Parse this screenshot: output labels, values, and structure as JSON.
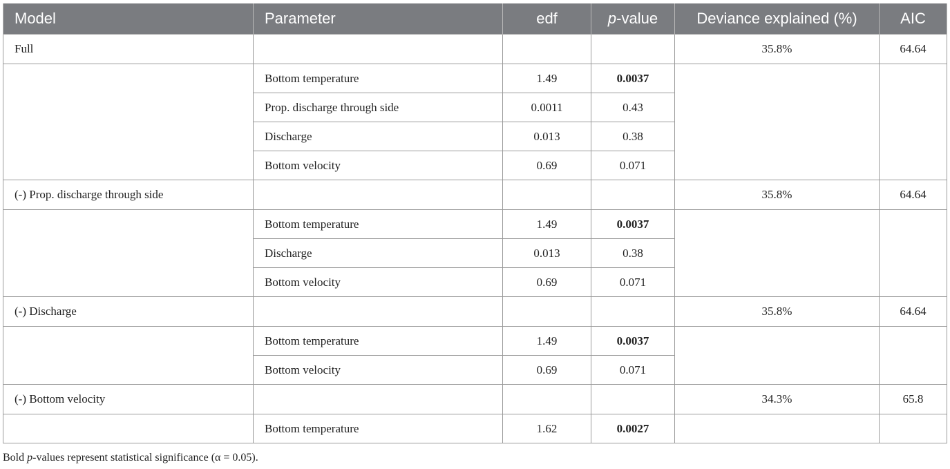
{
  "table": {
    "headers": {
      "model": "Model",
      "parameter": "Parameter",
      "edf": "edf",
      "p_prefix": "p",
      "p_suffix": "-value",
      "deviance": "Deviance explained (%)",
      "aic": "AIC"
    },
    "groups": [
      {
        "model": "Full",
        "deviance": "35.8%",
        "aic": "64.64",
        "params": [
          {
            "name": "Bottom temperature",
            "edf": "1.49",
            "p": "0.0037",
            "significant": true
          },
          {
            "name": "Prop. discharge through side",
            "edf": "0.0011",
            "p": "0.43",
            "significant": false
          },
          {
            "name": "Discharge",
            "edf": "0.013",
            "p": "0.38",
            "significant": false
          },
          {
            "name": "Bottom velocity",
            "edf": "0.69",
            "p": "0.071",
            "significant": false
          }
        ]
      },
      {
        "model": "(-) Prop. discharge through side",
        "deviance": "35.8%",
        "aic": "64.64",
        "params": [
          {
            "name": "Bottom temperature",
            "edf": "1.49",
            "p": "0.0037",
            "significant": true
          },
          {
            "name": "Discharge",
            "edf": "0.013",
            "p": "0.38",
            "significant": false
          },
          {
            "name": "Bottom velocity",
            "edf": "0.69",
            "p": "0.071",
            "significant": false
          }
        ]
      },
      {
        "model": "(-) Discharge",
        "deviance": "35.8%",
        "aic": "64.64",
        "params": [
          {
            "name": "Bottom temperature",
            "edf": "1.49",
            "p": "0.0037",
            "significant": true
          },
          {
            "name": "Bottom velocity",
            "edf": "0.69",
            "p": "0.071",
            "significant": false
          }
        ]
      },
      {
        "model": "(-) Bottom velocity",
        "deviance": "34.3%",
        "aic": "65.8",
        "params": [
          {
            "name": "Bottom temperature",
            "edf": "1.62",
            "p": "0.0027",
            "significant": true
          }
        ]
      }
    ]
  },
  "footnote": {
    "prefix": "Bold ",
    "p": "p",
    "suffix": "-values represent statistical significance (α = 0.05)."
  }
}
